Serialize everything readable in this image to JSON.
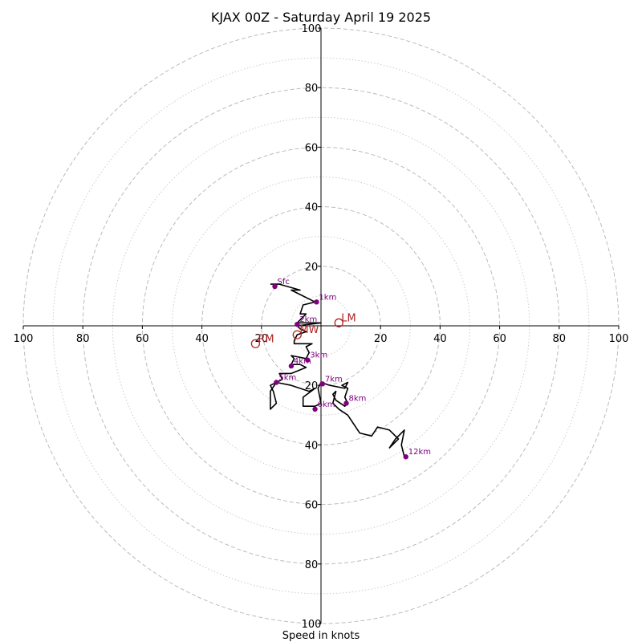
{
  "chart_data": {
    "type": "hodograph",
    "title": "KJAX 00Z - Saturday April 19 2025",
    "xlabel": "Speed in knots",
    "axis_range": [
      -100,
      100
    ],
    "rings_dashed": [
      20,
      40,
      60,
      80,
      100
    ],
    "rings_dotted": [
      10,
      30,
      50,
      70,
      90
    ],
    "x_ticks": [
      "100",
      "80",
      "60",
      "40",
      "20",
      "20",
      "40",
      "60",
      "80",
      "100"
    ],
    "y_ticks": [
      "100",
      "80",
      "60",
      "40",
      "20",
      "20",
      "40",
      "60",
      "80",
      "100"
    ],
    "trace": [
      [
        -17,
        14
      ],
      [
        -14,
        14
      ],
      [
        -7,
        12
      ],
      [
        -10,
        12
      ],
      [
        -6,
        10
      ],
      [
        -2,
        8
      ],
      [
        -6,
        7
      ],
      [
        -7,
        4
      ],
      [
        -5,
        4
      ],
      [
        -8,
        1
      ],
      [
        0,
        1
      ],
      [
        -8,
        0
      ],
      [
        -7,
        -1
      ],
      [
        -5,
        -2
      ],
      [
        -8,
        -3
      ],
      [
        -9,
        -5
      ],
      [
        -9,
        -6
      ],
      [
        -3,
        -6
      ],
      [
        -5,
        -7
      ],
      [
        -4,
        -9
      ],
      [
        -5,
        -11
      ],
      [
        -10,
        -10
      ],
      [
        -9,
        -11
      ],
      [
        -10,
        -13
      ],
      [
        -7,
        -13
      ],
      [
        -5,
        -14
      ],
      [
        -10,
        -16
      ],
      [
        -14,
        -16
      ],
      [
        -13,
        -18
      ],
      [
        -15,
        -19
      ],
      [
        -17,
        -20
      ],
      [
        -16,
        -22
      ],
      [
        -15,
        -26
      ],
      [
        -17,
        -28
      ],
      [
        -17,
        -22
      ],
      [
        -15,
        -19
      ],
      [
        -10,
        -20
      ],
      [
        -4,
        -22
      ],
      [
        -2,
        -21
      ],
      [
        -6,
        -24
      ],
      [
        -6,
        -27
      ],
      [
        -2,
        -27
      ],
      [
        0,
        -26
      ],
      [
        -1,
        -21
      ],
      [
        0,
        -19
      ],
      [
        3,
        -20
      ],
      [
        8,
        -21
      ],
      [
        9,
        -19
      ],
      [
        7,
        -20
      ],
      [
        9,
        -21
      ],
      [
        8,
        -24
      ],
      [
        9,
        -26
      ],
      [
        8,
        -27
      ],
      [
        5,
        -25
      ],
      [
        4,
        -23
      ],
      [
        5,
        -22
      ],
      [
        4,
        -26
      ],
      [
        6,
        -28
      ],
      [
        9,
        -30
      ],
      [
        13,
        -36
      ],
      [
        17,
        -37
      ],
      [
        19,
        -34
      ],
      [
        23,
        -35
      ],
      [
        26,
        -38
      ],
      [
        24,
        -40
      ],
      [
        23,
        -41
      ],
      [
        25,
        -38
      ],
      [
        28,
        -35
      ],
      [
        27,
        -40
      ],
      [
        28,
        -44
      ]
    ],
    "height_markers": [
      {
        "label": "Sfc",
        "u": -15.5,
        "v": 13.2
      },
      {
        "label": "1km",
        "u": -1.5,
        "v": 8.0
      },
      {
        "label": "2km",
        "u": -8.0,
        "v": 0.5
      },
      {
        "label": "3km",
        "u": -4.5,
        "v": -11.5
      },
      {
        "label": "4km",
        "u": -10.0,
        "v": -13.5
      },
      {
        "label": "5km",
        "u": -15.0,
        "v": -19.0
      },
      {
        "label": "6km",
        "u": -2.0,
        "v": -28.0
      },
      {
        "label": "7km",
        "u": 0.5,
        "v": -19.5
      },
      {
        "label": "8km",
        "u": 8.5,
        "v": -26.0
      },
      {
        "label": "12km",
        "u": 28.5,
        "v": -44.0
      }
    ],
    "motion_markers": [
      {
        "label": "LM",
        "u": 6,
        "v": 1
      },
      {
        "label": "RM",
        "u": -22,
        "v": -6
      },
      {
        "label": "MW",
        "u": -8,
        "v": -3
      }
    ],
    "mean_wind_label": "MW"
  }
}
